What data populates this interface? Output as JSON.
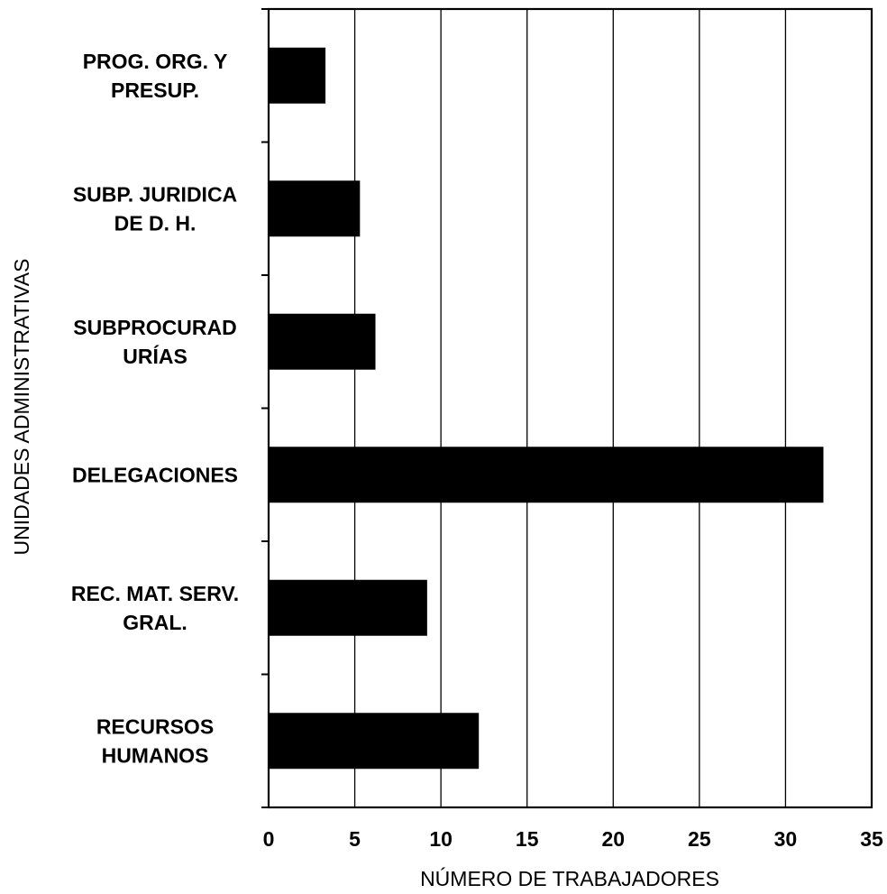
{
  "chart_data": {
    "type": "bar",
    "orientation": "horizontal",
    "title": "",
    "xlabel": "NÚMERO DE TRABAJADORES",
    "ylabel": "UNIDADES ADMINISTRATIVAS",
    "categories": [
      [
        "PROG. ORG. Y",
        "PRESUP."
      ],
      [
        "SUBP. JURIDICA",
        "DE D. H."
      ],
      [
        "SUBPROCURAD",
        "URÍAS"
      ],
      [
        "DELEGACIONES"
      ],
      [
        "REC. MAT. SERV.",
        "GRAL."
      ],
      [
        "RECURSOS",
        "HUMANOS"
      ]
    ],
    "values": [
      3.3,
      5.3,
      6.2,
      32.2,
      9.2,
      12.2
    ],
    "xlim": [
      0,
      35
    ],
    "xticks": [
      0,
      5,
      10,
      15,
      20,
      25,
      30,
      35
    ],
    "grid": "vertical",
    "legend": "none",
    "bar_color": "#000000"
  }
}
